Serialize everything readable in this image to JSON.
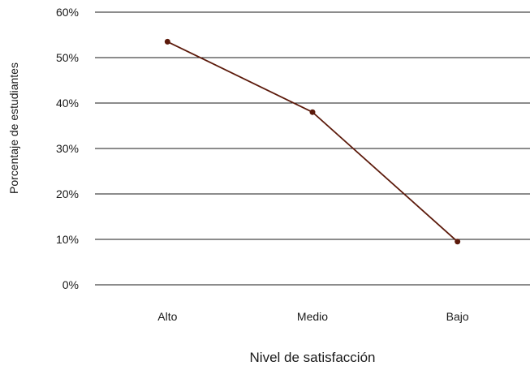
{
  "chart_data": {
    "type": "line",
    "categories": [
      "Alto",
      "Medio",
      "Bajo"
    ],
    "series": [
      {
        "values": [
          53.5,
          38,
          9.5
        ]
      }
    ],
    "xlabel": "Nivel de satisfacción",
    "ylabel": "Porcentaje de estudiantes",
    "ylim": [
      0,
      60
    ],
    "yticks": [
      "0%",
      "10%",
      "20%",
      "30%",
      "40%",
      "50%",
      "60%"
    ],
    "grid": true,
    "legend": "none",
    "color": "#5c1a0b"
  }
}
